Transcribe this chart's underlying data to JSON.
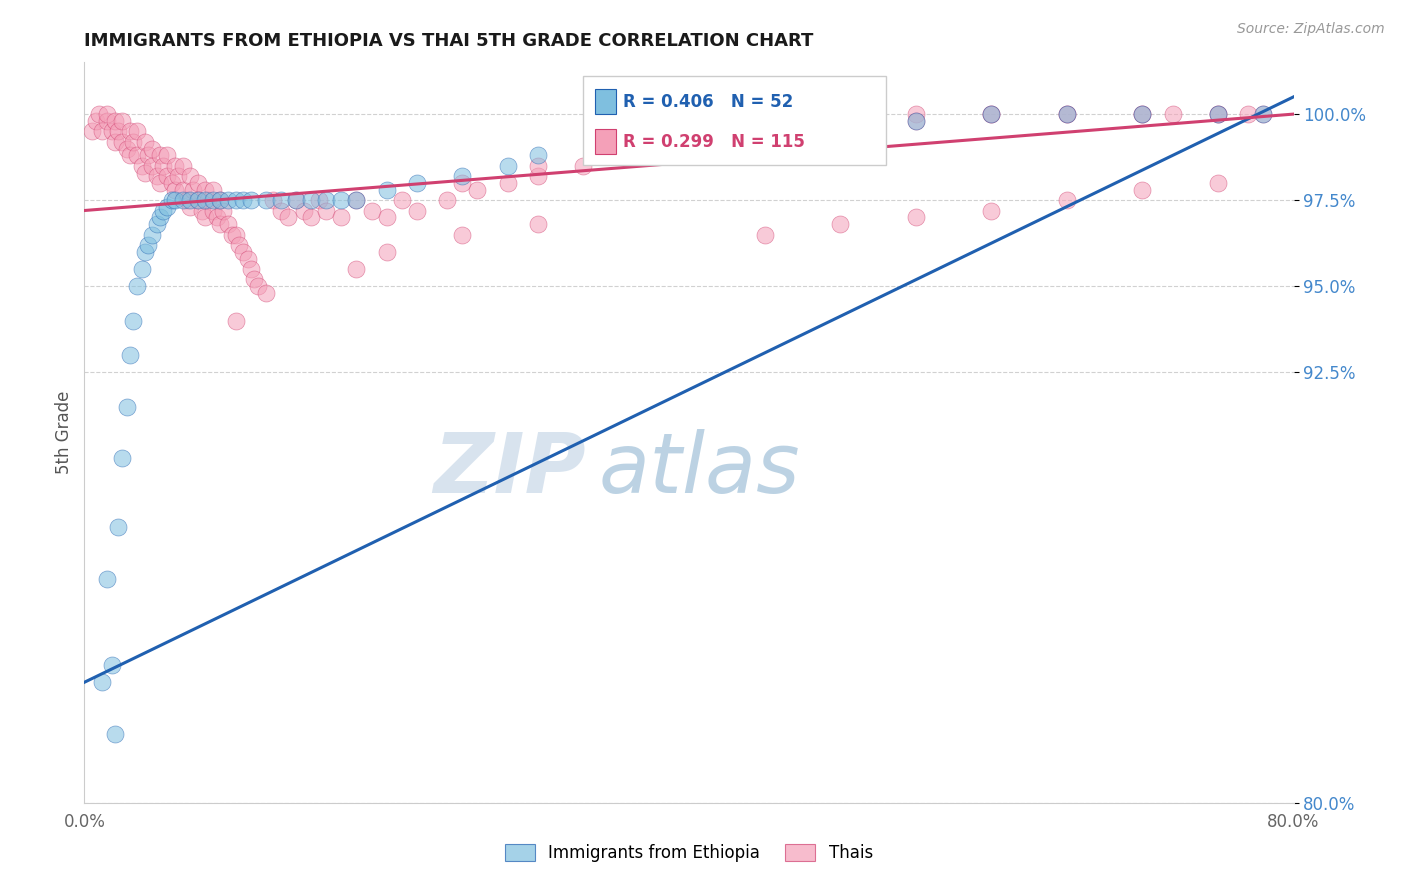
{
  "title": "IMMIGRANTS FROM ETHIOPIA VS THAI 5TH GRADE CORRELATION CHART",
  "source": "Source: ZipAtlas.com",
  "ylabel": "5th Grade",
  "xlim": [
    0.0,
    80.0
  ],
  "ylim": [
    80.0,
    101.5
  ],
  "ytick_values": [
    80.0,
    92.5,
    95.0,
    97.5,
    100.0
  ],
  "ytick_labels": [
    "80.0%",
    "92.5%",
    "95.0%",
    "97.5%",
    "100.0%"
  ],
  "xtick_values": [
    0.0,
    20.0,
    40.0,
    60.0,
    80.0
  ],
  "xtick_labels": [
    "0.0%",
    "",
    "",
    "",
    "80.0%"
  ],
  "legend1_label": "Immigrants from Ethiopia",
  "legend2_label": "Thais",
  "r1": 0.406,
  "n1": 52,
  "r2": 0.299,
  "n2": 115,
  "color_blue": "#7fbfdf",
  "color_pink": "#f4a0b8",
  "line_blue": "#2060b0",
  "line_pink": "#d04070",
  "yaxis_color": "#4488cc",
  "watermark_zip": "ZIP",
  "watermark_atlas": "atlas",
  "blue_x": [
    1.2,
    1.5,
    1.8,
    2.0,
    2.2,
    2.5,
    2.8,
    3.0,
    3.2,
    3.5,
    3.8,
    4.0,
    4.2,
    4.5,
    4.8,
    5.0,
    5.2,
    5.5,
    5.8,
    6.0,
    6.5,
    7.0,
    7.5,
    8.0,
    8.5,
    9.0,
    9.5,
    10.0,
    10.5,
    11.0,
    12.0,
    13.0,
    14.0,
    15.0,
    16.0,
    17.0,
    18.0,
    20.0,
    22.0,
    25.0,
    28.0,
    30.0,
    35.0,
    40.0,
    45.0,
    50.0,
    55.0,
    60.0,
    65.0,
    70.0,
    75.0,
    78.0
  ],
  "blue_y": [
    83.5,
    86.5,
    84.0,
    82.0,
    88.0,
    90.0,
    91.5,
    93.0,
    94.0,
    95.0,
    95.5,
    96.0,
    96.2,
    96.5,
    96.8,
    97.0,
    97.2,
    97.3,
    97.5,
    97.5,
    97.5,
    97.5,
    97.5,
    97.5,
    97.5,
    97.5,
    97.5,
    97.5,
    97.5,
    97.5,
    97.5,
    97.5,
    97.5,
    97.5,
    97.5,
    97.5,
    97.5,
    97.8,
    98.0,
    98.2,
    98.5,
    98.8,
    99.0,
    99.2,
    99.5,
    99.5,
    99.8,
    100.0,
    100.0,
    100.0,
    100.0,
    100.0
  ],
  "pink_x": [
    0.5,
    0.8,
    1.0,
    1.2,
    1.5,
    1.5,
    1.8,
    2.0,
    2.0,
    2.2,
    2.5,
    2.5,
    2.8,
    3.0,
    3.0,
    3.2,
    3.5,
    3.5,
    3.8,
    4.0,
    4.0,
    4.2,
    4.5,
    4.5,
    4.8,
    5.0,
    5.0,
    5.2,
    5.5,
    5.5,
    5.8,
    6.0,
    6.0,
    6.2,
    6.5,
    6.5,
    6.8,
    7.0,
    7.0,
    7.2,
    7.5,
    7.5,
    7.8,
    8.0,
    8.0,
    8.2,
    8.5,
    8.5,
    8.8,
    9.0,
    9.0,
    9.2,
    9.5,
    9.8,
    10.0,
    10.2,
    10.5,
    10.8,
    11.0,
    11.2,
    11.5,
    12.0,
    12.5,
    13.0,
    13.5,
    14.0,
    14.5,
    15.0,
    15.5,
    16.0,
    17.0,
    18.0,
    19.0,
    20.0,
    21.0,
    22.0,
    24.0,
    26.0,
    28.0,
    30.0,
    33.0,
    35.0,
    38.0,
    40.0,
    45.0,
    50.0,
    55.0,
    60.0,
    65.0,
    70.0,
    72.0,
    75.0,
    77.0,
    25.0,
    30.0,
    35.0,
    40.0,
    45.0,
    50.0,
    55.0,
    60.0,
    65.0,
    70.0,
    75.0,
    78.0,
    45.0,
    50.0,
    55.0,
    60.0,
    65.0,
    70.0,
    75.0,
    10.0,
    18.0,
    20.0,
    25.0,
    30.0
  ],
  "pink_y": [
    99.5,
    99.8,
    100.0,
    99.5,
    99.8,
    100.0,
    99.5,
    99.2,
    99.8,
    99.5,
    99.2,
    99.8,
    99.0,
    98.8,
    99.5,
    99.2,
    98.8,
    99.5,
    98.5,
    98.3,
    99.2,
    98.8,
    98.5,
    99.0,
    98.2,
    98.0,
    98.8,
    98.5,
    98.2,
    98.8,
    98.0,
    97.8,
    98.5,
    98.2,
    97.8,
    98.5,
    97.5,
    97.3,
    98.2,
    97.8,
    97.5,
    98.0,
    97.2,
    97.0,
    97.8,
    97.5,
    97.2,
    97.8,
    97.0,
    96.8,
    97.5,
    97.2,
    96.8,
    96.5,
    96.5,
    96.2,
    96.0,
    95.8,
    95.5,
    95.2,
    95.0,
    94.8,
    97.5,
    97.2,
    97.0,
    97.5,
    97.2,
    97.0,
    97.5,
    97.2,
    97.0,
    97.5,
    97.2,
    97.0,
    97.5,
    97.2,
    97.5,
    97.8,
    98.0,
    98.2,
    98.5,
    98.8,
    99.0,
    99.2,
    99.5,
    99.8,
    100.0,
    100.0,
    100.0,
    100.0,
    100.0,
    100.0,
    100.0,
    98.0,
    98.5,
    98.8,
    99.0,
    99.2,
    99.5,
    99.8,
    100.0,
    100.0,
    100.0,
    100.0,
    100.0,
    96.5,
    96.8,
    97.0,
    97.2,
    97.5,
    97.8,
    98.0,
    94.0,
    95.5,
    96.0,
    96.5,
    96.8
  ]
}
